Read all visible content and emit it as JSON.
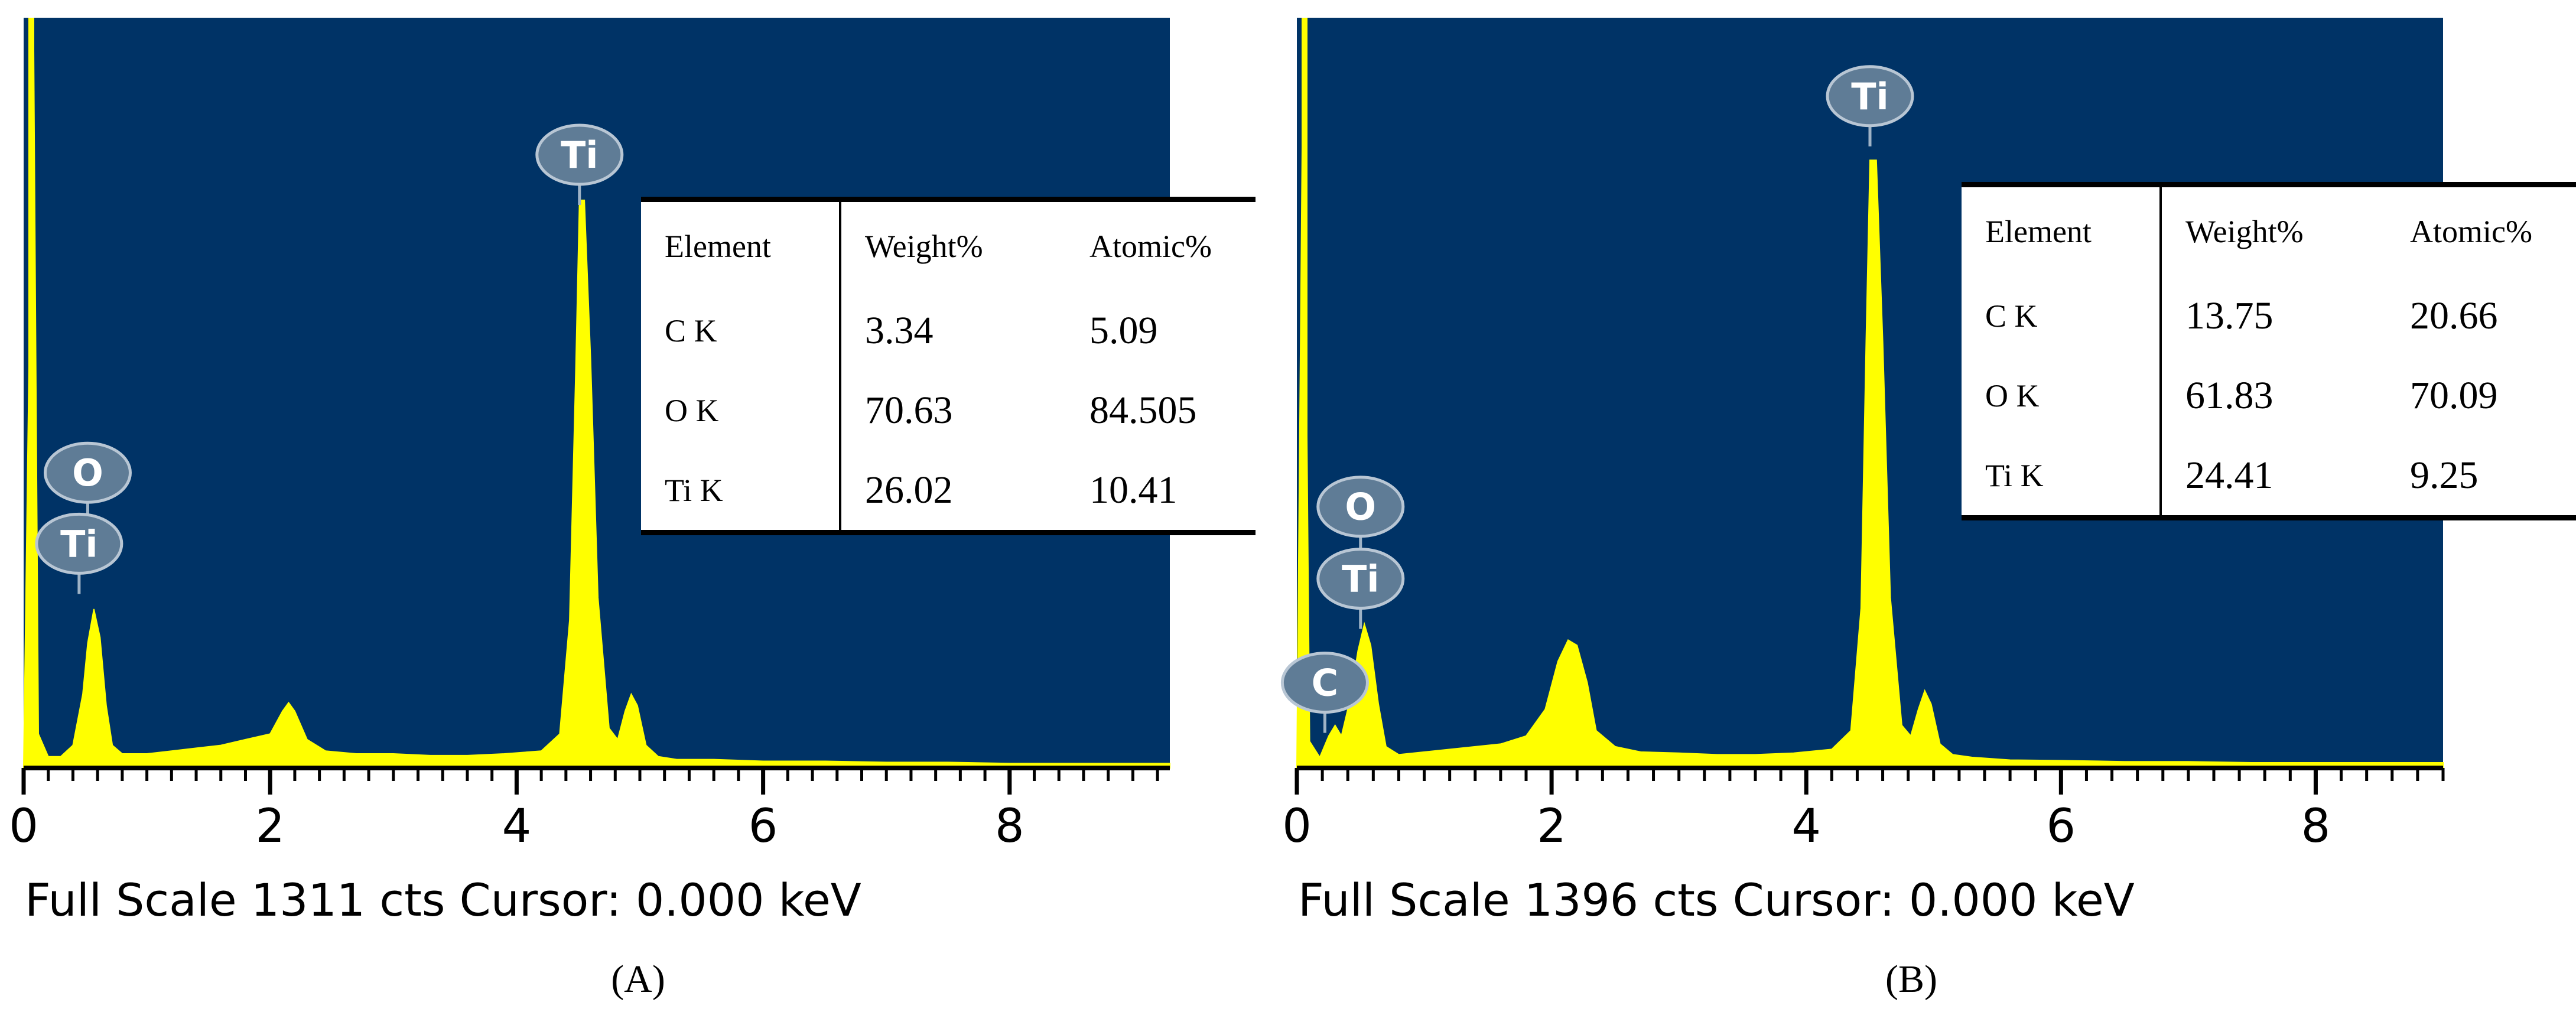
{
  "chart_data": [
    {
      "type": "line",
      "panel_label": "(A)",
      "xlabel": "",
      "ylabel": "",
      "xlim": [
        0,
        9.3
      ],
      "ylim": [
        0,
        1311
      ],
      "x_ticks": [
        "0",
        "2",
        "4",
        "6",
        "8"
      ],
      "footer": "Full Scale 1311 cts  Cursor: 0.000 keV",
      "colors": {
        "background": "#003366",
        "spectrum": "#ffff00",
        "axis": "#ffffff",
        "label_badge": "#5f7c96"
      },
      "series": [
        {
          "x": [
            0,
            0.08,
            0.12,
            0.2,
            0.3,
            0.4,
            0.48,
            0.52,
            0.57,
            0.62,
            0.67,
            0.72,
            0.8,
            1.0,
            1.2,
            1.4,
            1.6,
            1.8,
            2.0,
            2.1,
            2.15,
            2.2,
            2.3,
            2.45,
            2.7,
            3.0,
            3.3,
            3.6,
            3.9,
            4.2,
            4.35,
            4.43,
            4.48,
            4.51,
            4.55,
            4.6,
            4.66,
            4.75,
            4.82,
            4.88,
            4.93,
            4.98,
            5.05,
            5.15,
            5.3,
            5.6,
            6.0,
            6.5,
            7.0,
            7.5,
            8.0,
            8.5,
            9.0,
            9.3
          ],
          "y": [
            0,
            1311,
            60,
            20,
            20,
            40,
            130,
            220,
            280,
            230,
            110,
            40,
            25,
            25,
            30,
            35,
            40,
            50,
            60,
            100,
            115,
            100,
            50,
            30,
            25,
            25,
            22,
            22,
            25,
            30,
            60,
            260,
            700,
            1000,
            1000,
            720,
            300,
            70,
            50,
            100,
            130,
            110,
            40,
            20,
            15,
            15,
            12,
            12,
            10,
            10,
            8,
            8,
            8,
            8
          ]
        }
      ],
      "peak_labels": [
        {
          "text": "Ti",
          "x": 4.51,
          "y": 1080
        },
        {
          "text": "O",
          "x": 0.52,
          "y": 520
        },
        {
          "text": "Ti",
          "x": 0.45,
          "y": 395
        }
      ],
      "table": {
        "headers": [
          "Element",
          "Weight%",
          "Atomic%"
        ],
        "rows": [
          [
            "C K",
            "3.34",
            "5.09"
          ],
          [
            "O K",
            "70.63",
            "84.505"
          ],
          [
            "Ti K",
            "26.02",
            "10.41"
          ]
        ]
      }
    },
    {
      "type": "line",
      "panel_label": "(B)",
      "xlabel": "",
      "ylabel": "",
      "xlim": [
        0,
        9.0
      ],
      "ylim": [
        0,
        1396
      ],
      "x_ticks": [
        "0",
        "2",
        "4",
        "6",
        "8"
      ],
      "footer": "Full Scale 1396 cts  Cursor: 0.000 keV",
      "colors": {
        "background": "#003366",
        "spectrum": "#ffff00",
        "axis": "#ffffff",
        "label_badge": "#5f7c96"
      },
      "series": [
        {
          "x": [
            0,
            0.05,
            0.1,
            0.18,
            0.25,
            0.3,
            0.35,
            0.42,
            0.48,
            0.53,
            0.58,
            0.64,
            0.7,
            0.8,
            1.0,
            1.2,
            1.4,
            1.6,
            1.8,
            1.95,
            2.05,
            2.13,
            2.2,
            2.28,
            2.35,
            2.5,
            2.7,
            3.0,
            3.3,
            3.6,
            3.9,
            4.2,
            4.35,
            4.43,
            4.47,
            4.5,
            4.55,
            4.6,
            4.66,
            4.75,
            4.82,
            4.88,
            4.93,
            4.98,
            5.05,
            5.15,
            5.3,
            5.6,
            6.0,
            6.5,
            7.0,
            7.5,
            8.0,
            8.5,
            9.0
          ],
          "y": [
            0,
            1396,
            50,
            20,
            60,
            80,
            60,
            130,
            220,
            270,
            230,
            120,
            40,
            25,
            30,
            35,
            40,
            45,
            60,
            110,
            200,
            240,
            230,
            160,
            70,
            40,
            30,
            28,
            25,
            25,
            28,
            35,
            70,
            300,
            800,
            1140,
            1140,
            800,
            320,
            80,
            60,
            110,
            145,
            120,
            45,
            25,
            20,
            15,
            14,
            12,
            12,
            10,
            10,
            10,
            10
          ]
        }
      ],
      "peak_labels": [
        {
          "text": "Ti",
          "x": 4.5,
          "y": 1260
        },
        {
          "text": "O",
          "x": 0.5,
          "y": 490
        },
        {
          "text": "Ti",
          "x": 0.5,
          "y": 355
        },
        {
          "text": "C",
          "x": 0.22,
          "y": 160
        }
      ],
      "table": {
        "headers": [
          "Element",
          "Weight%",
          "Atomic%"
        ],
        "rows": [
          [
            "C K",
            "13.75",
            "20.66"
          ],
          [
            "O K",
            "61.83",
            "70.09"
          ],
          [
            "Ti K",
            "24.41",
            "9.25"
          ]
        ]
      }
    }
  ]
}
